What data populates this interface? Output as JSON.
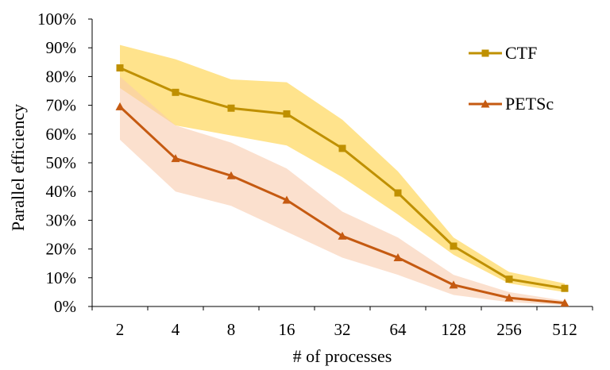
{
  "chart_data": {
    "type": "line",
    "title": "",
    "xlabel": "# of processes",
    "ylabel": "Parallel efficiency",
    "categories": [
      "2",
      "4",
      "8",
      "16",
      "32",
      "64",
      "128",
      "256",
      "512"
    ],
    "ylim": [
      0,
      100
    ],
    "y_ticks": [
      "0%",
      "10%",
      "20%",
      "30%",
      "40%",
      "50%",
      "60%",
      "70%",
      "80%",
      "90%",
      "100%"
    ],
    "grid": false,
    "legend_position": "right",
    "series": [
      {
        "name": "CTF",
        "color": "#BF9000",
        "band_color": "#FFD966",
        "marker": "square",
        "values": [
          83,
          74.5,
          69,
          67,
          55,
          39.5,
          21,
          9.5,
          6.3
        ],
        "upper": [
          91,
          86,
          79,
          78,
          65,
          47,
          24,
          12,
          8
        ],
        "lower": [
          76,
          63,
          59.5,
          56,
          45,
          32,
          18,
          8,
          5
        ]
      },
      {
        "name": "PETSc",
        "color": "#C55A11",
        "band_color": "#F8CBAD",
        "marker": "triangle",
        "values": [
          69.5,
          51.5,
          45.5,
          37,
          24.5,
          17,
          7.5,
          3,
          1.2
        ],
        "upper": [
          80,
          63,
          57,
          48,
          33,
          24,
          11,
          5,
          2
        ],
        "lower": [
          58,
          40,
          35,
          26,
          17,
          11,
          4,
          1.5,
          0.5
        ]
      }
    ]
  }
}
